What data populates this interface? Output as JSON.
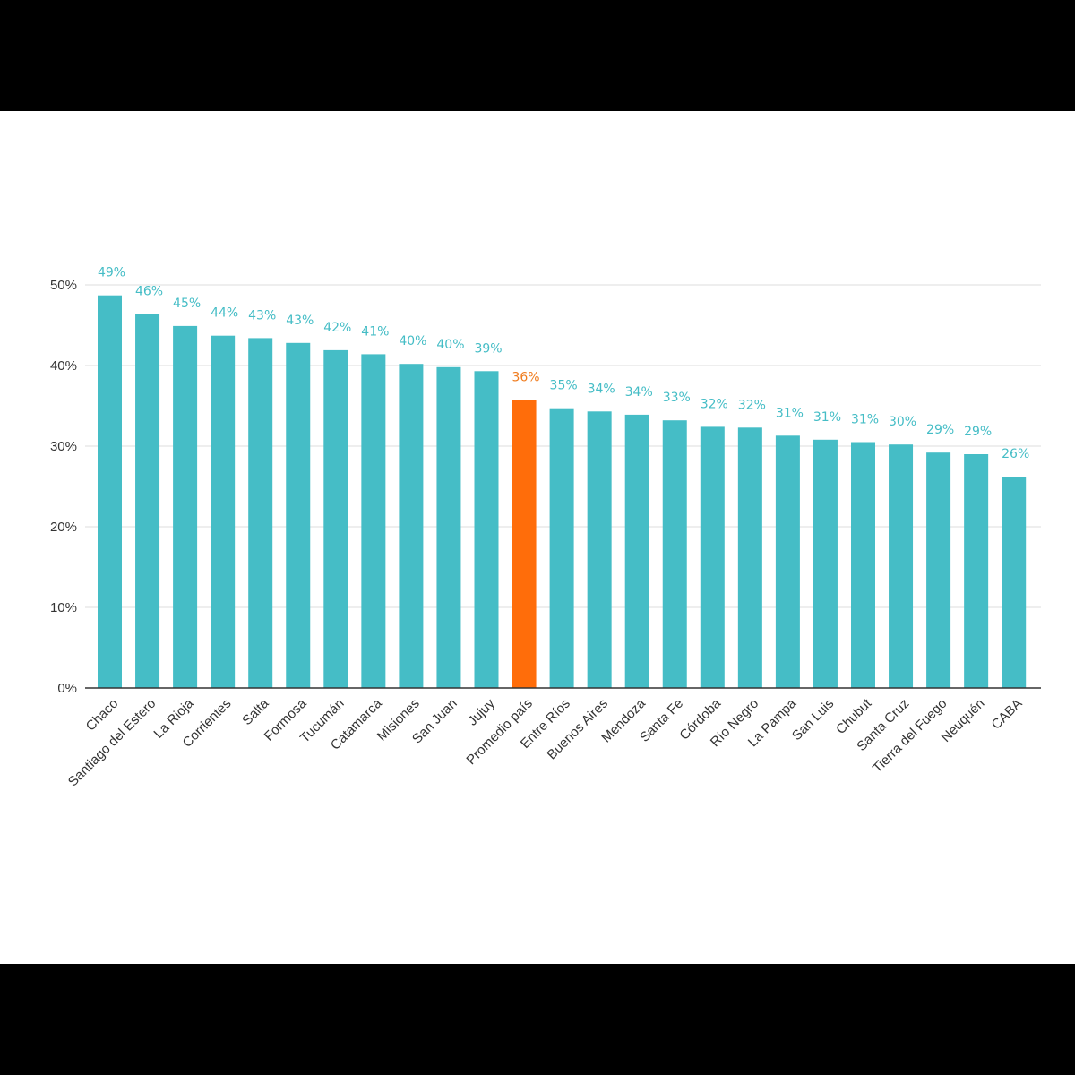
{
  "chart_data": {
    "type": "bar",
    "title": "",
    "xlabel": "",
    "ylabel": "",
    "ylim": [
      0,
      50
    ],
    "yticks": [
      0,
      10,
      20,
      30,
      40,
      50
    ],
    "ytick_labels": [
      "0%",
      "10%",
      "20%",
      "30%",
      "40%",
      "50%"
    ],
    "grid": true,
    "legend": "none",
    "colors": {
      "bar": "#45bdc6",
      "highlight": "#ff6d0a",
      "label": "#45bdc6",
      "highlight_label": "#f07c1e",
      "grid": "#dddddd",
      "axis": "#333333"
    },
    "highlight_category": "Promedio país",
    "categories": [
      "Chaco",
      "Santiago del Estero",
      "La Rioja",
      "Corrientes",
      "Salta",
      "Formosa",
      "Tucumán",
      "Catamarca",
      "Misiones",
      "San Juan",
      "Jujuy",
      "Promedio país",
      "Entre Ríos",
      "Buenos Aires",
      "Mendoza",
      "Santa Fe",
      "Córdoba",
      "Río Negro",
      "La Pampa",
      "San Luis",
      "Chubut",
      "Santa Cruz",
      "Tierra del Fuego",
      "Neuquén",
      "CABA"
    ],
    "values": [
      48.7,
      46.4,
      44.9,
      43.7,
      43.4,
      42.8,
      41.9,
      41.4,
      40.2,
      39.8,
      39.3,
      35.7,
      34.7,
      34.3,
      33.9,
      33.2,
      32.4,
      32.3,
      31.3,
      30.8,
      30.5,
      30.2,
      29.2,
      29.0,
      26.2
    ],
    "data_labels": [
      "49%",
      "46%",
      "45%",
      "44%",
      "43%",
      "43%",
      "42%",
      "41%",
      "40%",
      "40%",
      "39%",
      "36%",
      "35%",
      "34%",
      "34%",
      "33%",
      "32%",
      "32%",
      "31%",
      "31%",
      "31%",
      "30%",
      "29%",
      "29%",
      "26%"
    ]
  }
}
